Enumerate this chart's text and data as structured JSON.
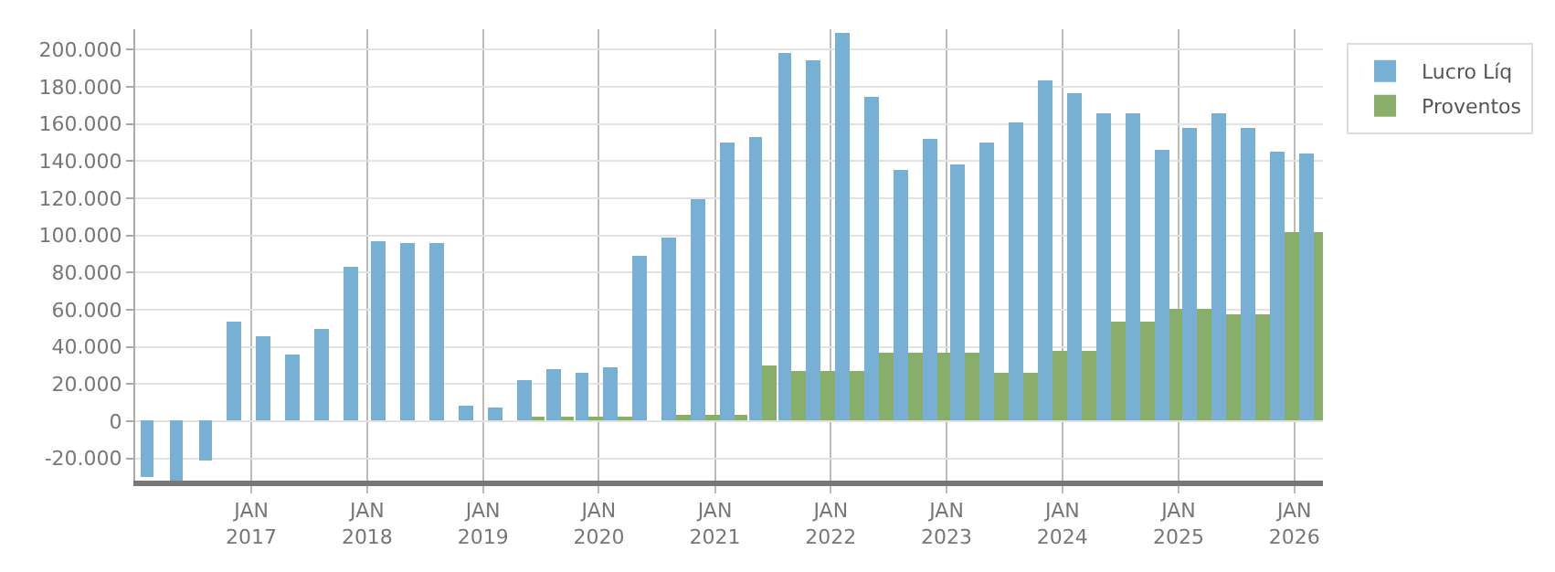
{
  "chart_data": {
    "type": "bar",
    "x": [
      "2016-03",
      "2016-06",
      "2016-09",
      "2016-12",
      "2017-03",
      "2017-06",
      "2017-09",
      "2017-12",
      "2018-03",
      "2018-06",
      "2018-09",
      "2018-12",
      "2019-03",
      "2019-06",
      "2019-09",
      "2019-12",
      "2020-03",
      "2020-06",
      "2020-09",
      "2020-12",
      "2021-03",
      "2021-06",
      "2021-09",
      "2021-12",
      "2022-03",
      "2022-06",
      "2022-09",
      "2022-12",
      "2023-03",
      "2023-06",
      "2023-09",
      "2023-12",
      "2024-03",
      "2024-06",
      "2024-09",
      "2024-12",
      "2025-03",
      "2025-06",
      "2025-09",
      "2025-12",
      "2026-03"
    ],
    "series": [
      {
        "name": "Lucro Líq",
        "color": "#77b0d2",
        "values": [
          -30000,
          -32000,
          -21000,
          54000,
          46000,
          36000,
          50000,
          83000,
          97000,
          96000,
          96000,
          8000,
          7500,
          22000,
          28500,
          26000,
          29000,
          89000,
          99000,
          120000,
          150000,
          152500,
          198000,
          194000,
          209000,
          174500,
          135000,
          151500,
          138500,
          150000,
          161000,
          183000,
          177000,
          166000,
          165500,
          146000,
          158000,
          166000,
          158000,
          145000,
          144000
        ]
      },
      {
        "name": "Proventos",
        "color": "#88ae6a",
        "values": [
          0,
          0,
          0,
          0,
          0,
          0,
          0,
          0,
          0,
          0,
          0,
          0,
          0,
          2000,
          2000,
          2000,
          2000,
          0,
          3000,
          3000,
          3000,
          30000,
          27000,
          27000,
          27000,
          37000,
          37000,
          37000,
          37000,
          26000,
          26000,
          38000,
          38000,
          54000,
          54000,
          60000,
          60000,
          58000,
          58000,
          102000,
          102000
        ]
      }
    ],
    "xlim": [
      "2016-01",
      "2026-04"
    ],
    "xticks": [
      {
        "value": "2017-01",
        "label": "JAN\n2017"
      },
      {
        "value": "2018-01",
        "label": "JAN\n2018"
      },
      {
        "value": "2019-01",
        "label": "JAN\n2019"
      },
      {
        "value": "2020-01",
        "label": "JAN\n2020"
      },
      {
        "value": "2021-01",
        "label": "JAN\n2021"
      },
      {
        "value": "2022-01",
        "label": "JAN\n2022"
      },
      {
        "value": "2023-01",
        "label": "JAN\n2023"
      },
      {
        "value": "2024-01",
        "label": "JAN\n2024"
      },
      {
        "value": "2025-01",
        "label": "JAN\n2025"
      },
      {
        "value": "2026-01",
        "label": "JAN\n2026"
      }
    ],
    "ylim": [
      -32000,
      211000
    ],
    "yticks": [
      {
        "value": -20000,
        "label": "-20.000"
      },
      0,
      {
        "value": 20000,
        "label": "20.000"
      },
      {
        "value": 40000,
        "label": "40.000"
      },
      {
        "value": 60000,
        "label": "60.000"
      },
      {
        "value": 80000,
        "label": "80.000"
      },
      {
        "value": 100000,
        "label": "100.000"
      },
      {
        "value": 120000,
        "label": "120.000"
      },
      {
        "value": 140000,
        "label": "140.000"
      },
      {
        "value": 160000,
        "label": "160.000"
      },
      {
        "value": 180000,
        "label": "180.000"
      },
      {
        "value": 200000,
        "label": "200.000"
      }
    ],
    "grid": true,
    "legend": "top right"
  }
}
